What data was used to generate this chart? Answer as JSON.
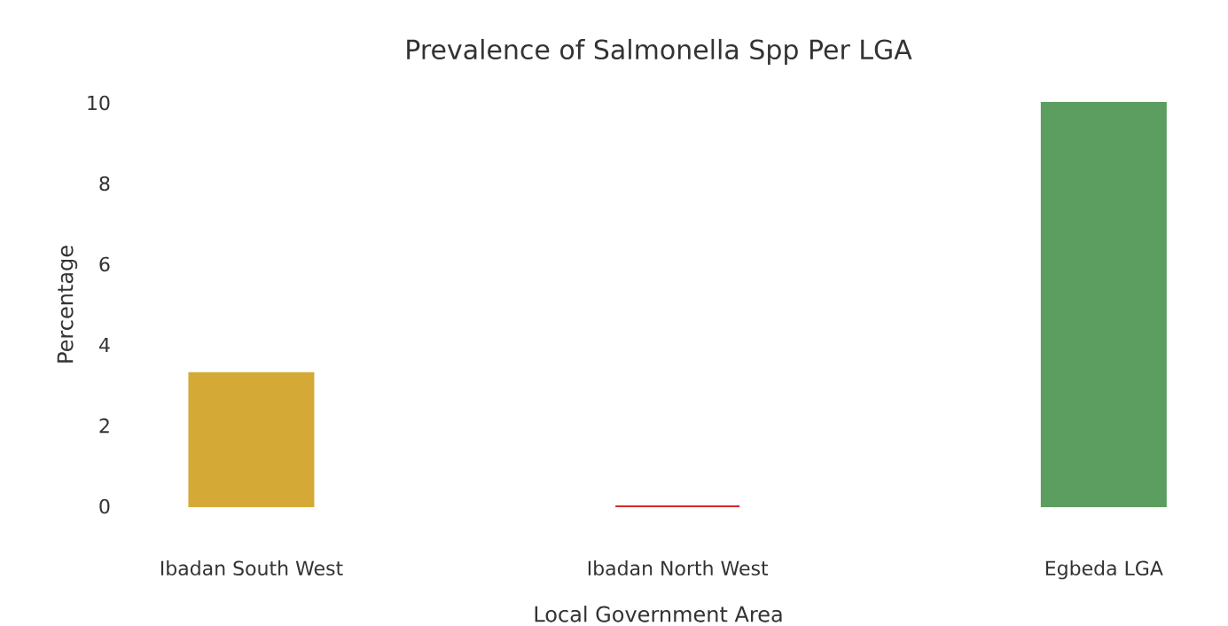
{
  "chart_data": {
    "type": "bar",
    "title": "Prevalence of Salmonella Spp Per LGA",
    "xlabel": "Local Government Area",
    "ylabel": "Percentage",
    "categories": [
      "Ibadan South West",
      "Ibadan North West",
      "Egbeda LGA"
    ],
    "values": [
      3.3,
      0,
      10
    ],
    "colors": [
      "#d4a935",
      "#d62728",
      "#5b9e5f"
    ],
    "ylim": [
      0,
      10
    ],
    "yticks": [
      0,
      2,
      4,
      6,
      8,
      10
    ],
    "grid": false
  }
}
